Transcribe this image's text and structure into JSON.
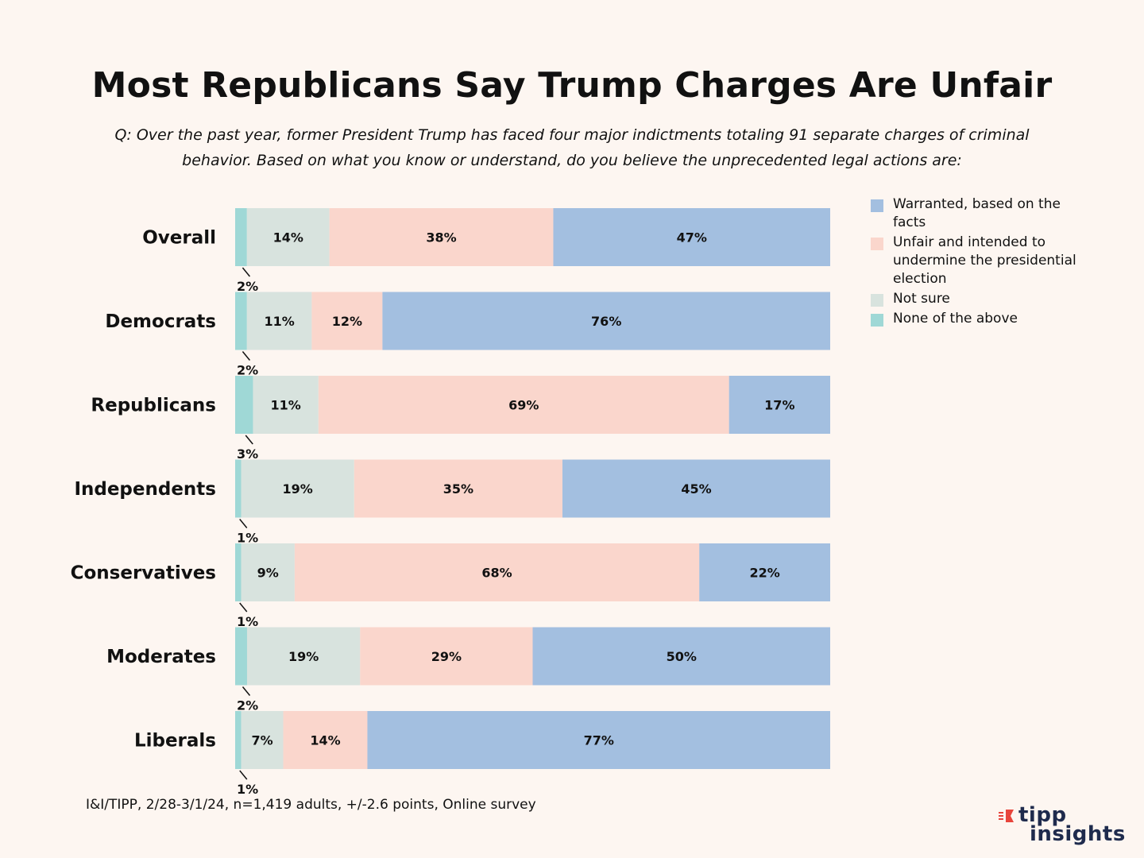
{
  "title": "Most Republicans Say Trump Charges Are Unfair",
  "question": "Q: Over the past year, former President Trump has faced four major indictments totaling 91 separate charges of criminal behavior. Based on what you know or understand, do you believe the unprecedented legal actions are:",
  "source": "I&I/TIPP, 2/28-3/1/24, n=1,419 adults, +/-2.6 points,  Online survey",
  "logo": {
    "line1": "tipp",
    "line2": "insights"
  },
  "colors": {
    "none": "#9fd8d6",
    "not_sure": "#d8e3de",
    "unfair": "#fad6cc",
    "warranted": "#a3bfe0",
    "logo_accent": "#e8453c",
    "logo_text": "#1f2b4d"
  },
  "legend": [
    {
      "label": "Warranted, based on the facts",
      "color": "#a3bfe0"
    },
    {
      "label": "Unfair and intended to undermine the presidential election",
      "color": "#fad6cc"
    },
    {
      "label": "Not sure",
      "color": "#d8e3de"
    },
    {
      "label": "None of the above",
      "color": "#9fd8d6"
    }
  ],
  "chart_data": {
    "type": "bar",
    "orientation": "horizontal",
    "stacked": true,
    "legend_position": "right",
    "categories": [
      "Overall",
      "Democrats",
      "Republicans",
      "Independents",
      "Conservatives",
      "Moderates",
      "Liberals"
    ],
    "series": [
      {
        "name": "None of the above",
        "color": "#9fd8d6",
        "values": [
          2,
          2,
          3,
          1,
          1,
          2,
          1
        ]
      },
      {
        "name": "Not sure",
        "color": "#d8e3de",
        "values": [
          14,
          11,
          11,
          19,
          9,
          19,
          7
        ]
      },
      {
        "name": "Unfair and intended to undermine the presidential election",
        "color": "#fad6cc",
        "values": [
          38,
          12,
          69,
          35,
          68,
          29,
          14
        ]
      },
      {
        "name": "Warranted, based on the facts",
        "color": "#a3bfe0",
        "values": [
          47,
          76,
          17,
          45,
          22,
          50,
          77
        ]
      }
    ],
    "value_suffix": "%"
  }
}
